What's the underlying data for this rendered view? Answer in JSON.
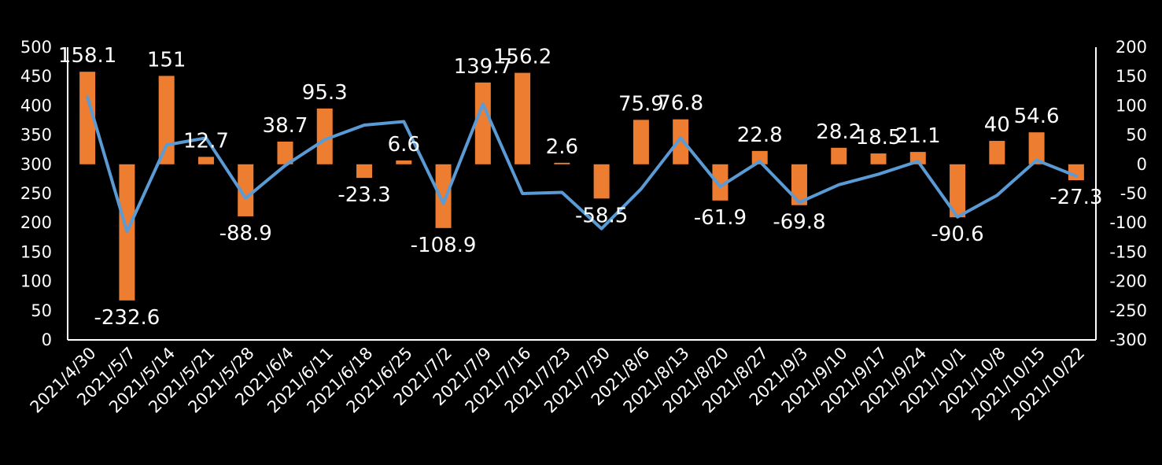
{
  "chart_data": {
    "type": "bar",
    "categories": [
      "2021/4/30",
      "2021/5/7",
      "2021/5/14",
      "2021/5/21",
      "2021/5/28",
      "2021/6/4",
      "2021/6/11",
      "2021/6/18",
      "2021/6/25",
      "2021/7/2",
      "2021/7/9",
      "2021/7/16",
      "2021/7/23",
      "2021/7/30",
      "2021/8/6",
      "2021/8/13",
      "2021/8/20",
      "2021/8/27",
      "2021/9/3",
      "2021/9/10",
      "2021/9/17",
      "2021/9/24",
      "2021/10/1",
      "2021/10/8",
      "2021/10/15",
      "2021/10/22"
    ],
    "series": [
      {
        "type": "bar",
        "axis": "right",
        "color": "#ED7D31",
        "values": [
          158.1,
          -232.6,
          151,
          12.7,
          -88.9,
          38.7,
          95.3,
          -23.3,
          6.6,
          -108.9,
          139.7,
          156.2,
          2.6,
          -58.5,
          75.9,
          76.8,
          -61.9,
          22.8,
          -69.8,
          28.2,
          18.5,
          21.1,
          -90.6,
          40,
          54.6,
          -27.3
        ],
        "labels": [
          "158.1",
          "-232.6",
          "151",
          "12.7",
          "-88.9",
          "38.7",
          "95.3",
          "-23.3",
          "6.6",
          "-108.9",
          "139.7",
          "156.2",
          "2.6",
          "-58.5",
          "75.9",
          "76.8",
          "-61.9",
          "22.8",
          "-69.8",
          "28.2",
          "18.5",
          "21.1",
          "-90.6",
          "40",
          "54.6",
          "-27.3"
        ]
      },
      {
        "type": "line",
        "axis": "left",
        "color": "#5B9BD5",
        "values": [
          415,
          185,
          333,
          345,
          242,
          298,
          342,
          367,
          373,
          233,
          403,
          250,
          252,
          190,
          258,
          345,
          262,
          305,
          235,
          265,
          283,
          305,
          210,
          247,
          307,
          280
        ]
      }
    ],
    "left_axis": {
      "min": 0,
      "max": 500,
      "ticks": [
        "500",
        "450",
        "400",
        "350",
        "300",
        "250",
        "200",
        "150",
        "100",
        "50",
        "0"
      ]
    },
    "right_axis": {
      "min": -300,
      "max": 200,
      "ticks": [
        "200",
        "150",
        "100",
        "50",
        "0",
        "-50",
        "-100",
        "-150",
        "-200",
        "-250",
        "-300"
      ]
    },
    "title": "",
    "xlabel": "",
    "ylabel": "",
    "grid": false,
    "legend": "none",
    "background": "#000000",
    "axis_color": "#ffffff"
  }
}
